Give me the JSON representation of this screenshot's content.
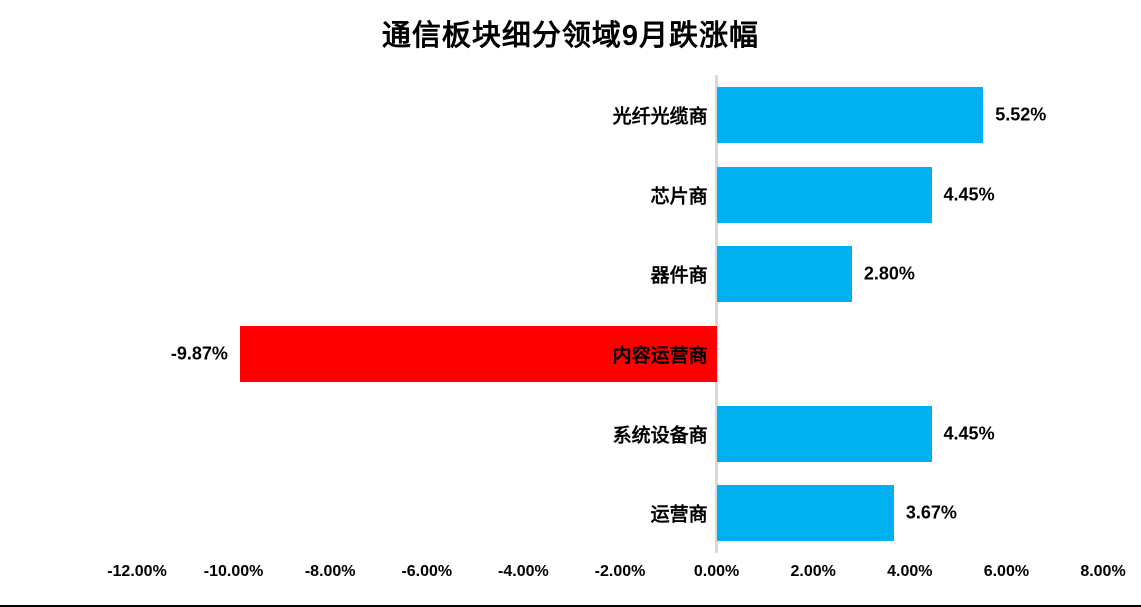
{
  "page": {
    "background_color": "#FFFFFF",
    "bottom_border_color": "#000000"
  },
  "chart_data": {
    "type": "bar",
    "orientation": "horizontal",
    "title": "通信板块细分领域9月跌涨幅",
    "categories": [
      "光纤光缆商",
      "芯片商",
      "器件商",
      "内容运营商",
      "系统设备商",
      "运营商"
    ],
    "values": [
      5.52,
      4.45,
      2.8,
      -9.87,
      4.45,
      3.67
    ],
    "data_labels": [
      "5.52%",
      "4.45%",
      "2.80%",
      "-9.87%",
      "4.45%",
      "3.67%"
    ],
    "bar_colors": [
      "#00B0F0",
      "#00B0F0",
      "#00B0F0",
      "#FF0000",
      "#00B0F0",
      "#00B0F0"
    ],
    "positive_color": "#00B0F0",
    "negative_color": "#FF0000",
    "xlim": [
      -12,
      8
    ],
    "x_tick_values": [
      -12,
      -10,
      -8,
      -6,
      -4,
      -2,
      0,
      2,
      4,
      6,
      8
    ],
    "x_tick_labels": [
      "-12.00%",
      "-10.00%",
      "-8.00%",
      "-6.00%",
      "-4.00%",
      "-2.00%",
      "0.00%",
      "2.00%",
      "4.00%",
      "6.00%",
      "8.00%"
    ],
    "xlabel": "",
    "ylabel": "",
    "grid": false,
    "legend": "none",
    "axis_line_color": "#D9D9D9",
    "text_color": "#000000"
  }
}
